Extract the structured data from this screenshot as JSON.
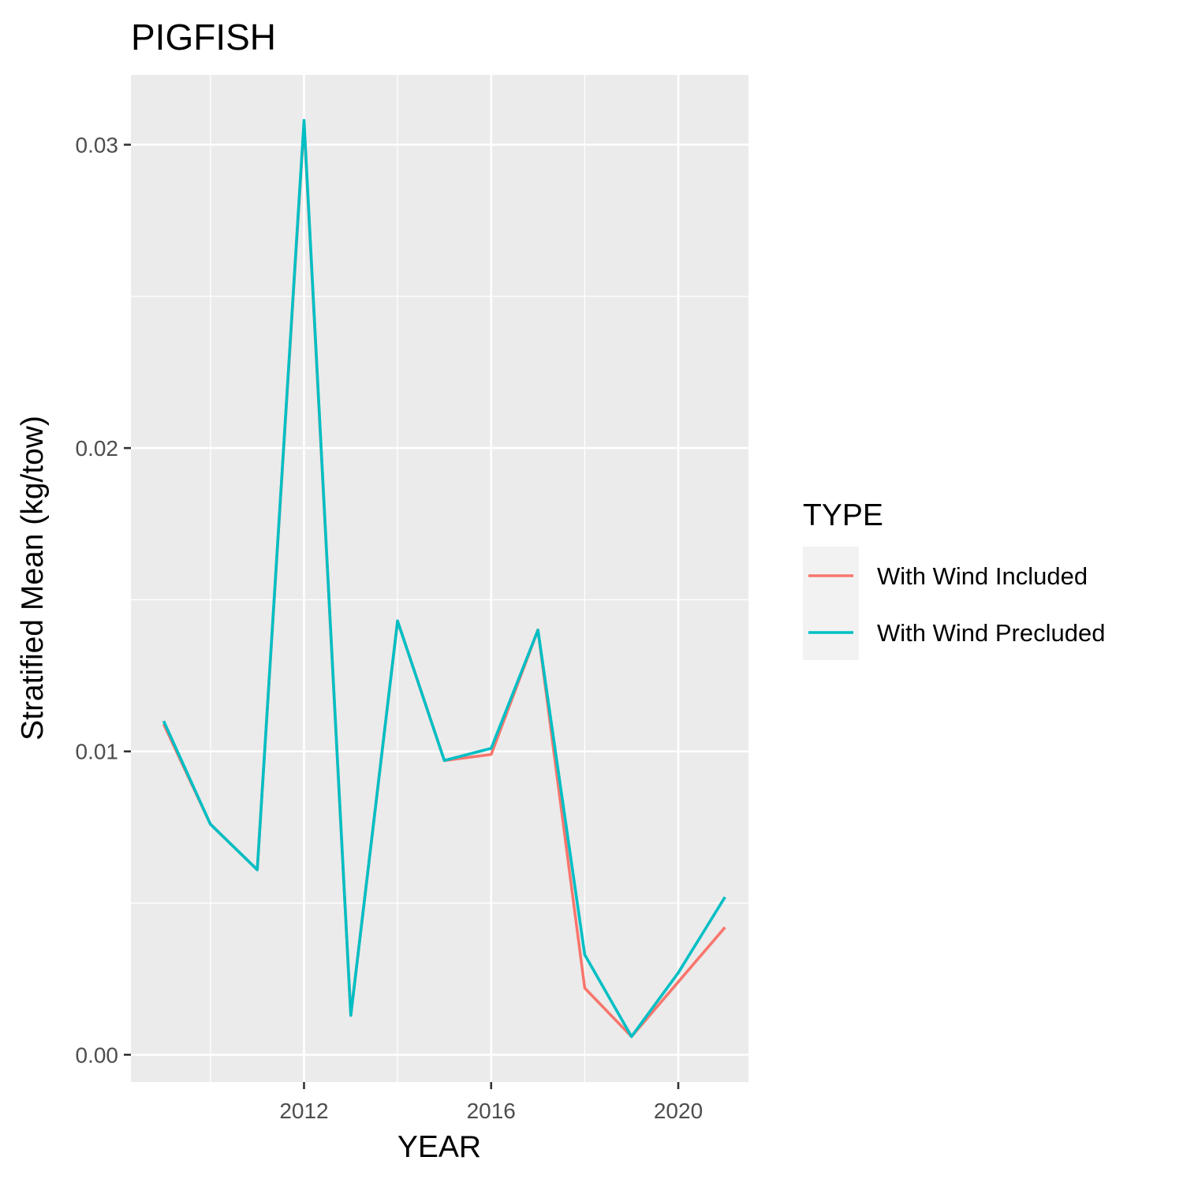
{
  "chart_data": {
    "type": "line",
    "title": "PIGFISH",
    "xlabel": "YEAR",
    "ylabel": "Stratified Mean (kg/tow)",
    "x": [
      2009,
      2010,
      2011,
      2012,
      2013,
      2014,
      2015,
      2016,
      2017,
      2018,
      2019,
      2020,
      2021
    ],
    "xlim": [
      2008.3,
      2021.5
    ],
    "ylim": [
      -0.0009,
      0.0323
    ],
    "x_ticks": [
      2012,
      2016,
      2020
    ],
    "x_tick_labels": [
      "2012",
      "2016",
      "2020"
    ],
    "y_ticks": [
      0.0,
      0.01,
      0.02,
      0.03
    ],
    "y_tick_labels": [
      "0.00",
      "0.01",
      "0.02",
      "0.03"
    ],
    "grid": true,
    "legend": {
      "title": "TYPE",
      "placement": "right"
    },
    "series": [
      {
        "name": "With Wind Included",
        "color": "#F8766D",
        "values": [
          0.0109,
          0.0076,
          0.0061,
          0.0307,
          0.0013,
          0.0143,
          0.0097,
          0.0099,
          0.014,
          0.0022,
          0.0006,
          0.0024,
          0.0042
        ]
      },
      {
        "name": "With Wind Precluded",
        "color": "#00BFC4",
        "values": [
          0.011,
          0.0076,
          0.0061,
          0.0308,
          0.0013,
          0.0143,
          0.0097,
          0.0101,
          0.014,
          0.0033,
          0.0006,
          0.0027,
          0.0052
        ]
      }
    ]
  }
}
